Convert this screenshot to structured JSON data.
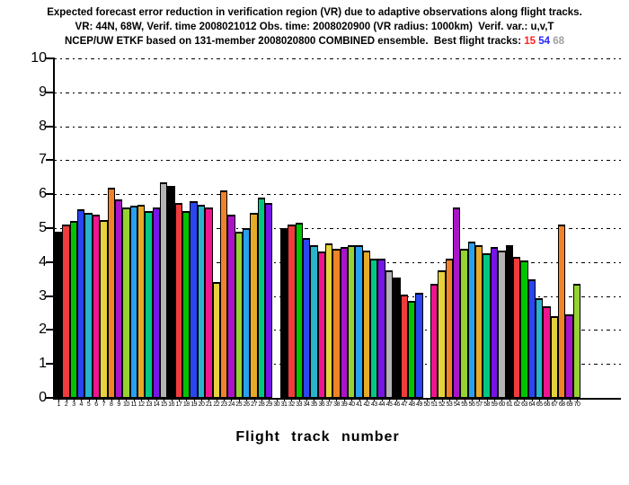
{
  "title": {
    "line1": "Expected forecast error reduction in verification region (VR) due to adaptive observations along flight tracks.",
    "line2": "VR: 44N, 68W, Verif. time 2008021012 Obs. time: 2008020900 (VR radius: 1000km)  Verif. var.: u,v,T",
    "line3_prefix": "NCEP/UW ETKF based on 131-member 2008020800 COMBINED ensemble.  Best flight tracks:",
    "best_tracks": [
      {
        "label": "15",
        "color": "#ff2020"
      },
      {
        "label": "54",
        "color": "#2525ff"
      },
      {
        "label": "68",
        "color": "#a0a0a0"
      }
    ]
  },
  "chart_data": {
    "type": "bar",
    "title": "Expected forecast error reduction in VR due to adaptive observations along flight tracks",
    "xlabel": "Flight track number",
    "ylabel": "",
    "ylim": [
      0,
      10
    ],
    "yticks": [
      0,
      1,
      2,
      3,
      4,
      5,
      6,
      7,
      8,
      9,
      10
    ],
    "grid": "horizontal dash-dot",
    "legend": "none",
    "categories": [
      1,
      2,
      3,
      4,
      5,
      6,
      7,
      8,
      9,
      10,
      11,
      12,
      13,
      14,
      15,
      16,
      17,
      18,
      19,
      20,
      21,
      22,
      23,
      24,
      25,
      26,
      27,
      28,
      29,
      30,
      31,
      32,
      33,
      34,
      35,
      36,
      37,
      38,
      39,
      40,
      41,
      42,
      43,
      44,
      45,
      46,
      47,
      48,
      49,
      50,
      51,
      52,
      53,
      54,
      55,
      56,
      57,
      58,
      59,
      60,
      61,
      62,
      63,
      64,
      65,
      66,
      67,
      68,
      69,
      70
    ],
    "values": [
      4.9,
      5.1,
      5.2,
      5.55,
      5.45,
      5.4,
      5.25,
      6.2,
      5.85,
      5.6,
      5.65,
      5.7,
      5.5,
      5.6,
      6.35,
      6.25,
      5.75,
      5.5,
      5.8,
      5.7,
      5.6,
      3.4,
      6.1,
      5.4,
      4.9,
      5.0,
      5.45,
      5.9,
      5.75,
      null,
      5.0,
      5.1,
      5.15,
      4.7,
      4.5,
      4.3,
      4.55,
      4.4,
      4.45,
      4.5,
      4.5,
      4.35,
      4.1,
      4.1,
      3.75,
      3.55,
      3.05,
      2.85,
      3.1,
      null,
      3.35,
      3.75,
      4.1,
      5.6,
      4.4,
      4.6,
      4.5,
      4.25,
      4.45,
      4.35,
      4.5,
      4.15,
      4.05,
      3.5,
      2.95,
      2.7,
      2.4,
      5.1,
      2.45,
      3.35
    ],
    "missing_tracks": [
      30,
      50
    ],
    "color_cycle": [
      "#000000",
      "#f03c3c",
      "#00c400",
      "#2a46f0",
      "#28b4cc",
      "#f01490",
      "#e6d23c",
      "#f08228",
      "#aa14c8",
      "#96d232",
      "#28a0f0",
      "#e6aa28",
      "#00c882",
      "#7814e6",
      "#b4b4b4"
    ]
  }
}
